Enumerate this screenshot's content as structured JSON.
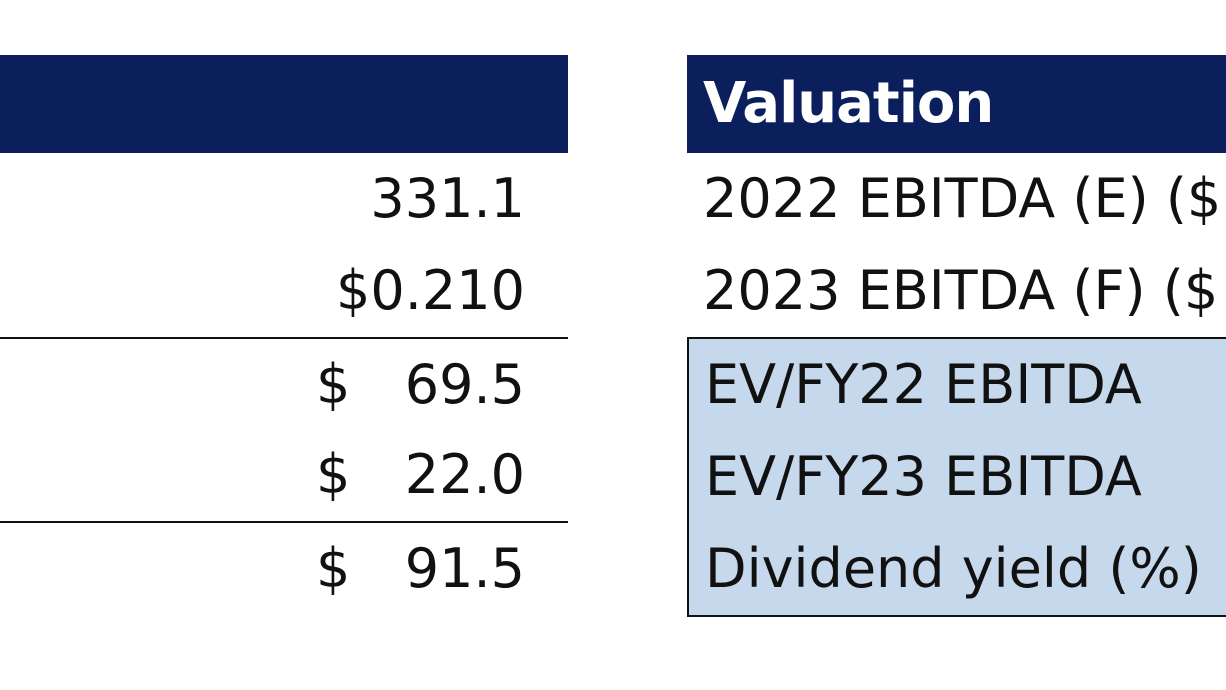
{
  "left_table": {
    "header": "",
    "rows": [
      {
        "value": "331.1"
      },
      {
        "value": "$0.210"
      },
      {
        "currency": "$",
        "amount": "69.5"
      },
      {
        "currency": "$",
        "amount": "22.0"
      },
      {
        "currency": "$",
        "amount": "91.5"
      }
    ]
  },
  "right_table": {
    "header": "Valuation",
    "rows": [
      {
        "label": "2022 EBITDA (E) ($"
      },
      {
        "label": "2023 EBITDA (F) ($"
      },
      {
        "label": "EV/FY22 EBITDA"
      },
      {
        "label": "EV/FY23 EBITDA"
      },
      {
        "label": "Dividend yield (%)"
      }
    ]
  },
  "colors": {
    "header_bg": "#0b1f5c",
    "highlight_bg": "#c6d8ec"
  }
}
